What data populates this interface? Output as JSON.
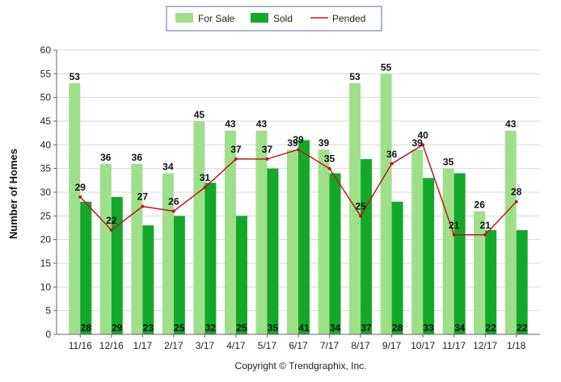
{
  "chart_data": {
    "type": "bar",
    "categories": [
      "11/16",
      "12/16",
      "1/17",
      "2/17",
      "3/17",
      "4/17",
      "5/17",
      "6/17",
      "7/17",
      "8/17",
      "9/17",
      "10/17",
      "11/17",
      "12/17",
      "1/18"
    ],
    "series": [
      {
        "name": "For Sale",
        "kind": "bar",
        "color": "#9ee08a",
        "values": [
          53,
          36,
          36,
          34,
          45,
          43,
          43,
          39,
          39,
          53,
          55,
          39,
          35,
          26,
          43
        ]
      },
      {
        "name": "Sold",
        "kind": "bar",
        "color": "#14a82b",
        "values": [
          28,
          29,
          23,
          25,
          32,
          25,
          35,
          41,
          34,
          37,
          28,
          33,
          34,
          22,
          22
        ]
      },
      {
        "name": "Pended",
        "kind": "line",
        "color": "#c0181c",
        "values": [
          29,
          22,
          27,
          26,
          31,
          37,
          37,
          39,
          35,
          25,
          36,
          40,
          21,
          21,
          28
        ]
      }
    ],
    "ylabel": "Number of Homes",
    "xlabel": "",
    "ylim": [
      0,
      60
    ],
    "yticks": [
      0,
      5,
      10,
      15,
      20,
      25,
      30,
      35,
      40,
      45,
      50,
      55,
      60
    ],
    "grid": true,
    "legend_position": "top-center"
  },
  "footer": {
    "copyright": "Copyright © Trendgraphix, Inc."
  }
}
